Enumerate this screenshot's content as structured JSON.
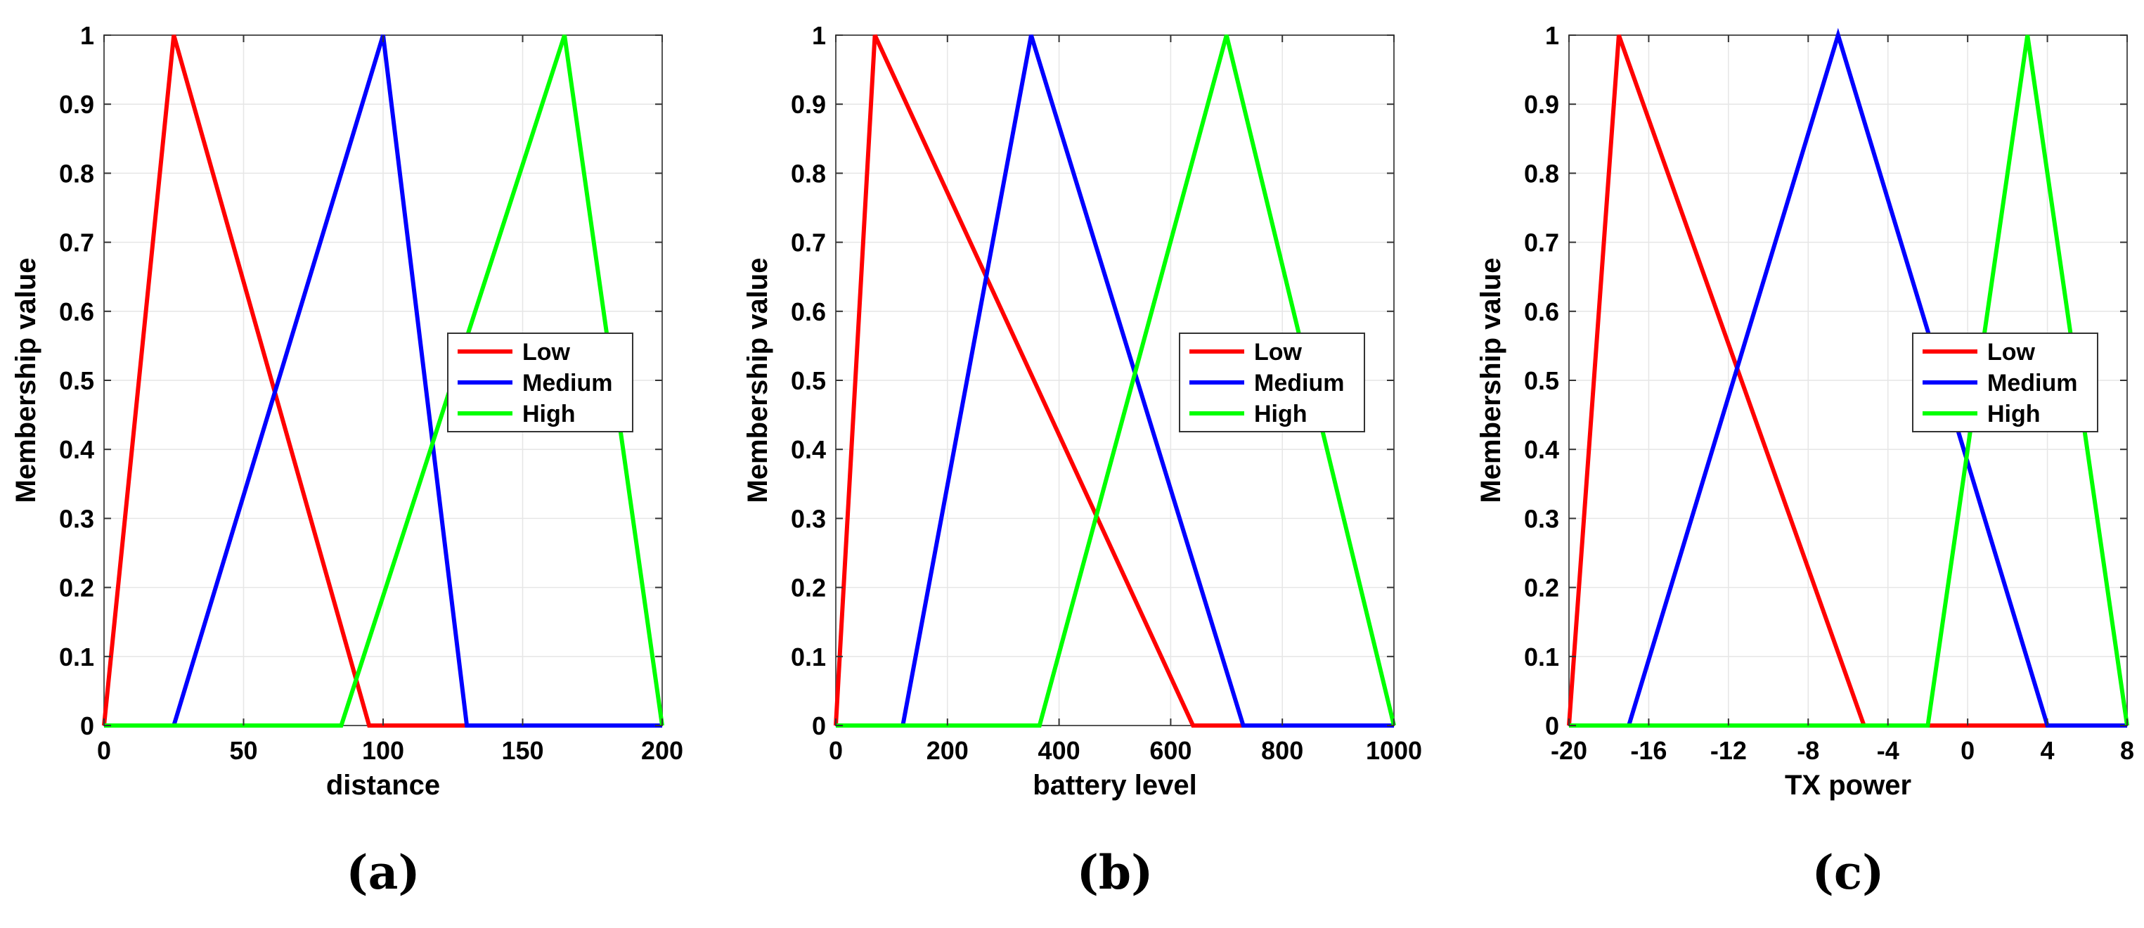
{
  "chart_data": [
    {
      "type": "line",
      "caption": "(a)",
      "xlabel": "distance",
      "ylabel": "Membership value",
      "xlim": [
        0,
        200
      ],
      "ylim": [
        0,
        1
      ],
      "xticks": [
        0,
        50,
        100,
        150,
        200
      ],
      "xtick_labels": [
        "0",
        "50",
        "100",
        "150",
        "200"
      ],
      "yticks": [
        0,
        0.1,
        0.2,
        0.3,
        0.4,
        0.5,
        0.6,
        0.7,
        0.8,
        0.9,
        1
      ],
      "ytick_labels": [
        "0",
        "0.1",
        "0.2",
        "0.3",
        "0.4",
        "0.5",
        "0.6",
        "0.7",
        "0.8",
        "0.9",
        "1"
      ],
      "grid": true,
      "legend_position": "center-right",
      "series": [
        {
          "name": "Low",
          "color": "#ff0000",
          "x": [
            0,
            25,
            95,
            200
          ],
          "y": [
            0,
            1,
            0,
            0
          ]
        },
        {
          "name": "Medium",
          "color": "#0000ff",
          "x": [
            0,
            25,
            100,
            130,
            200
          ],
          "y": [
            0,
            0,
            1,
            0,
            0
          ]
        },
        {
          "name": "High",
          "color": "#00ff00",
          "x": [
            0,
            85,
            165,
            200
          ],
          "y": [
            0,
            0,
            1,
            0
          ]
        }
      ]
    },
    {
      "type": "line",
      "caption": "(b)",
      "xlabel": "battery level",
      "ylabel": "Membership value",
      "xlim": [
        0,
        1000
      ],
      "ylim": [
        0,
        1
      ],
      "xticks": [
        0,
        200,
        400,
        600,
        800,
        1000
      ],
      "xtick_labels": [
        "0",
        "200",
        "400",
        "600",
        "800",
        "1000"
      ],
      "yticks": [
        0,
        0.1,
        0.2,
        0.3,
        0.4,
        0.5,
        0.6,
        0.7,
        0.8,
        0.9,
        1
      ],
      "ytick_labels": [
        "0",
        "0.1",
        "0.2",
        "0.3",
        "0.4",
        "0.5",
        "0.6",
        "0.7",
        "0.8",
        "0.9",
        "1"
      ],
      "grid": true,
      "legend_position": "center-right",
      "series": [
        {
          "name": "Low",
          "color": "#ff0000",
          "x": [
            0,
            70,
            640,
            1000
          ],
          "y": [
            0,
            1,
            0,
            0
          ]
        },
        {
          "name": "Medium",
          "color": "#0000ff",
          "x": [
            0,
            120,
            350,
            730,
            1000
          ],
          "y": [
            0,
            0,
            1,
            0,
            0
          ]
        },
        {
          "name": "High",
          "color": "#00ff00",
          "x": [
            0,
            365,
            700,
            1000
          ],
          "y": [
            0,
            0,
            1,
            0
          ]
        }
      ]
    },
    {
      "type": "line",
      "caption": "(c)",
      "xlabel": "TX power",
      "ylabel": "Membership value",
      "xlim": [
        -20,
        8
      ],
      "ylim": [
        0,
        1
      ],
      "xticks": [
        -20,
        -16,
        -12,
        -8,
        -4,
        0,
        4,
        8
      ],
      "xtick_labels": [
        "-20",
        "-16",
        "-12",
        "-8",
        "-4",
        "0",
        "4",
        "8"
      ],
      "yticks": [
        0,
        0.1,
        0.2,
        0.3,
        0.4,
        0.5,
        0.6,
        0.7,
        0.8,
        0.9,
        1
      ],
      "ytick_labels": [
        "0",
        "0.1",
        "0.2",
        "0.3",
        "0.4",
        "0.5",
        "0.6",
        "0.7",
        "0.8",
        "0.9",
        "1"
      ],
      "grid": true,
      "legend_position": "center-right",
      "series": [
        {
          "name": "Low",
          "color": "#ff0000",
          "x": [
            -20,
            -17.5,
            -5.2,
            8
          ],
          "y": [
            0,
            1,
            0,
            0
          ]
        },
        {
          "name": "Medium",
          "color": "#0000ff",
          "x": [
            -20,
            -17,
            -6.5,
            4,
            8
          ],
          "y": [
            0,
            0,
            1,
            0,
            0
          ]
        },
        {
          "name": "High",
          "color": "#00ff00",
          "x": [
            -20,
            -2,
            3,
            8
          ],
          "y": [
            0,
            0,
            1,
            0
          ]
        }
      ]
    }
  ]
}
